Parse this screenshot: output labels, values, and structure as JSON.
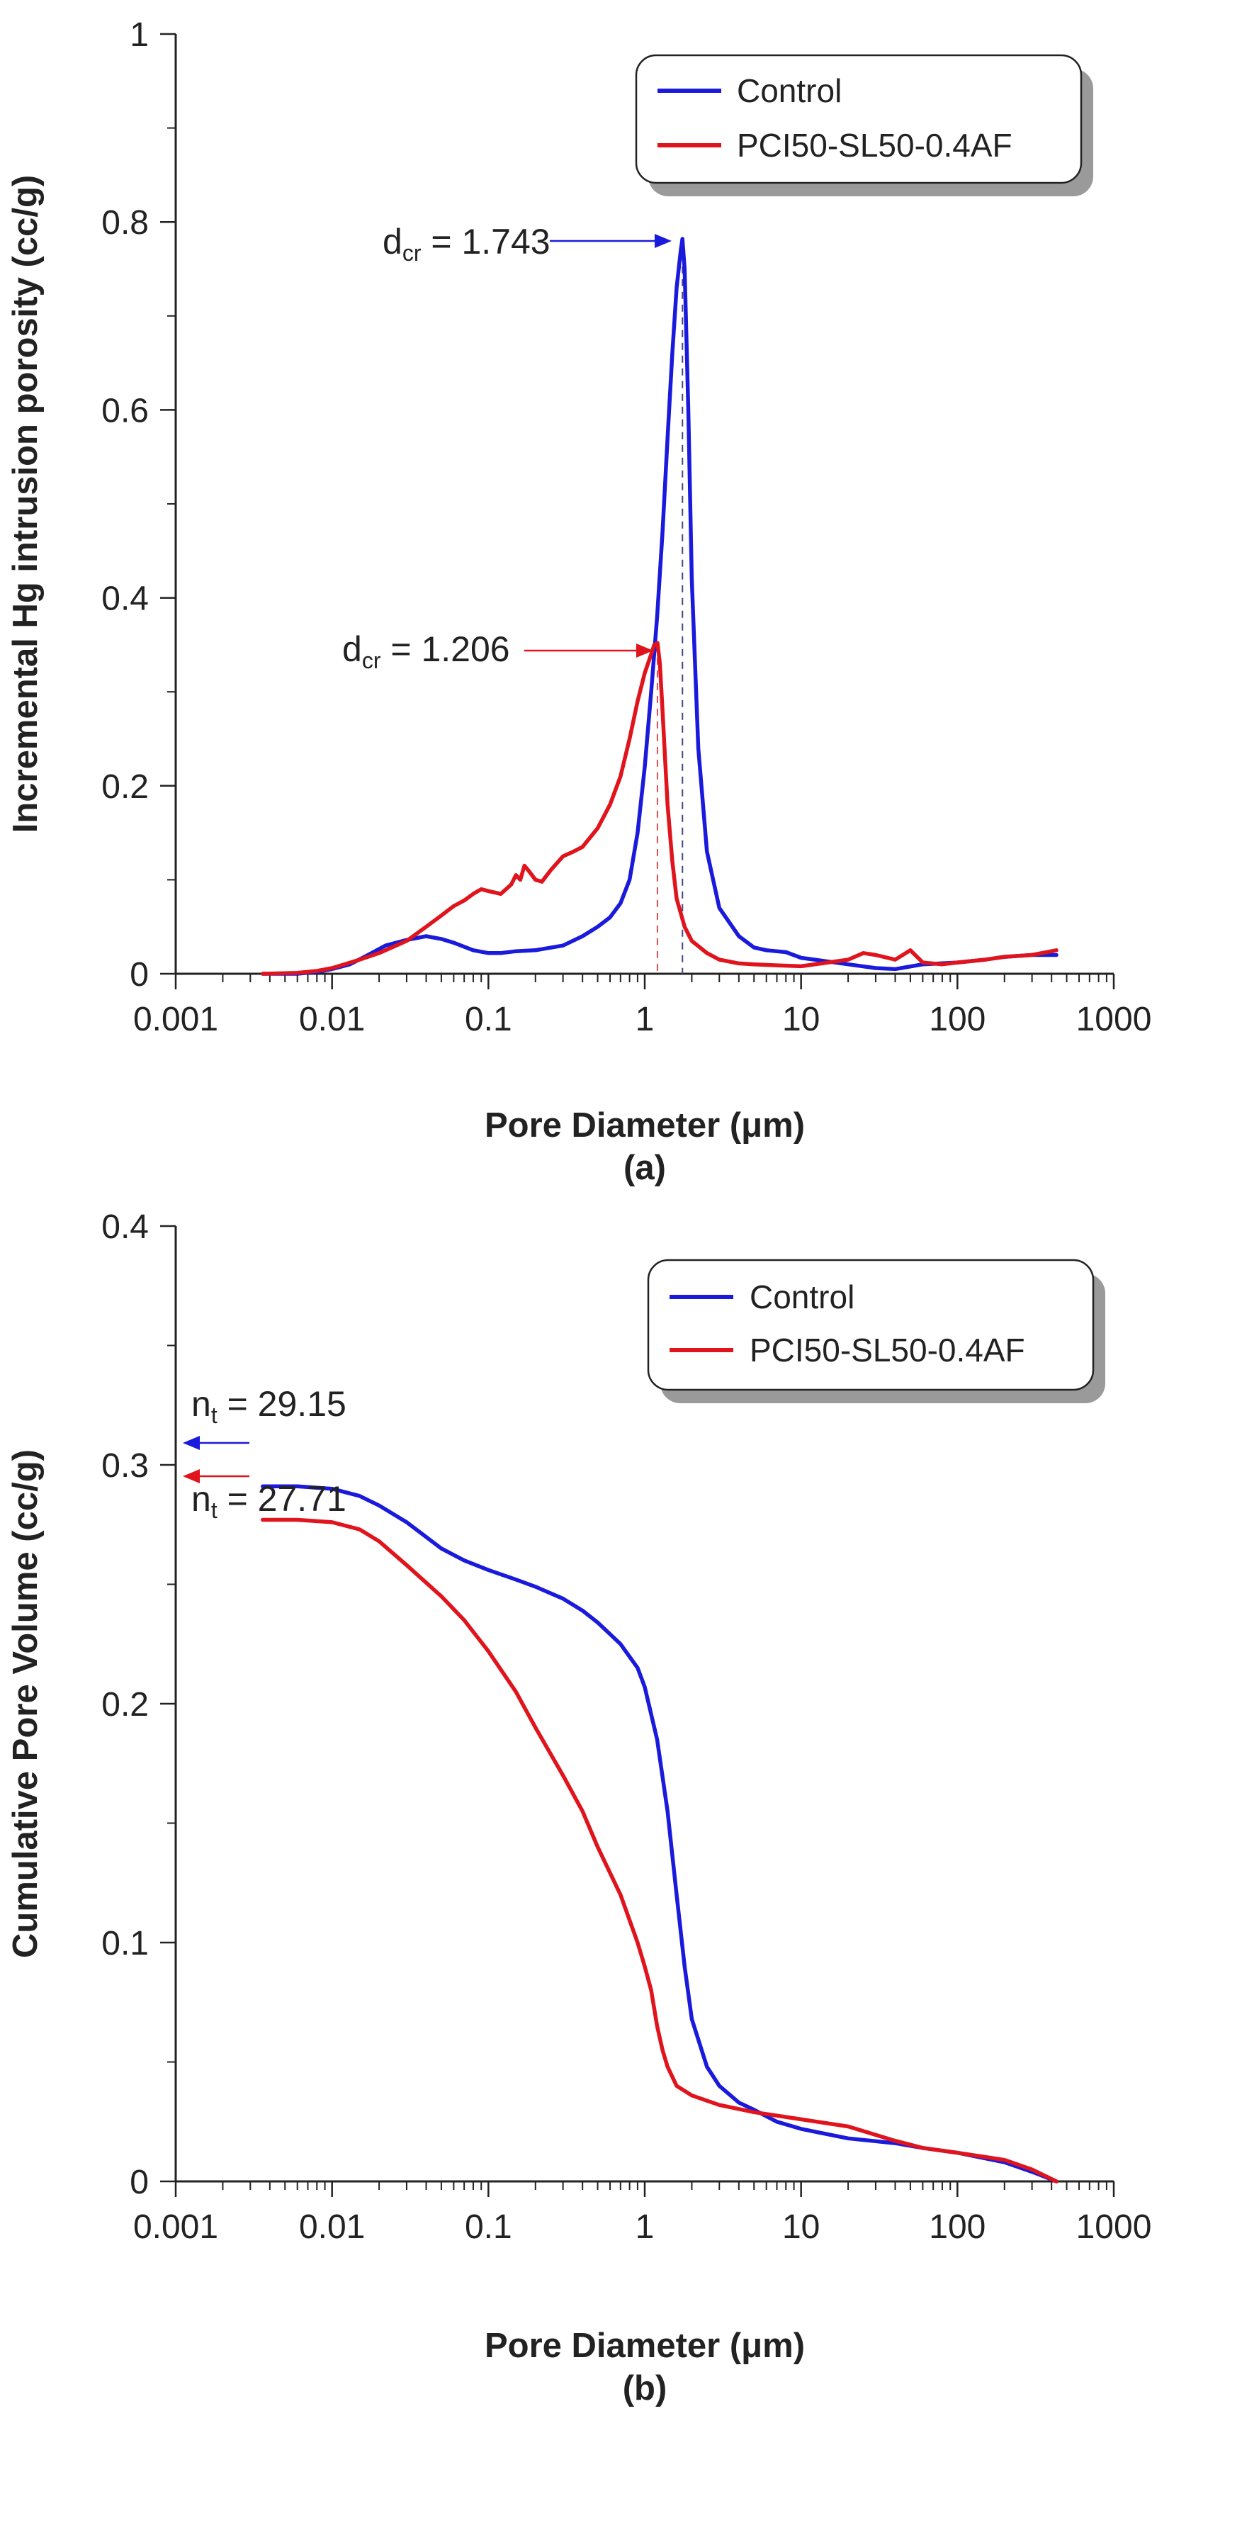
{
  "colors": {
    "control": "#1a1adc",
    "pci": "#e0141c",
    "axis": "#222222",
    "refline_blue": "#444488",
    "refline_red": "#e05050"
  },
  "chart_data": [
    {
      "type": "line",
      "panel": "(a)",
      "xscale": "log",
      "xlim": [
        0.001,
        1000
      ],
      "ylim": [
        0,
        1
      ],
      "xlabel": "Pore Diameter (μm)",
      "ylabel": "Incremental Hg intrusion porosity (cc/g)",
      "xticks": [
        "0.001",
        "0.01",
        "0.1",
        "1",
        "10",
        "100",
        "1000"
      ],
      "yticks": [
        "0",
        "0.2",
        "0.4",
        "0.6",
        "0.8",
        "1"
      ],
      "legend": {
        "placement": "top-right",
        "entries": [
          "Control",
          "PCI50-SL50-0.4AF"
        ]
      },
      "annotations": [
        {
          "main": "d",
          "sub": "cr",
          "rest": " = 1.743",
          "series": "Control",
          "x": 1.743,
          "y": 0.78
        },
        {
          "main": "d",
          "sub": "cr",
          "rest": " = 1.206",
          "series": "PCI50-SL50-0.4AF",
          "x": 1.206,
          "y": 0.35
        }
      ],
      "series": [
        {
          "name": "Control",
          "color_key": "control",
          "x": [
            0.0036,
            0.006,
            0.008,
            0.01,
            0.013,
            0.017,
            0.022,
            0.03,
            0.04,
            0.05,
            0.06,
            0.08,
            0.1,
            0.12,
            0.15,
            0.2,
            0.3,
            0.4,
            0.5,
            0.6,
            0.7,
            0.8,
            0.9,
            1.0,
            1.1,
            1.2,
            1.3,
            1.4,
            1.5,
            1.6,
            1.7,
            1.743,
            1.8,
            1.9,
            2.0,
            2.2,
            2.5,
            3,
            4,
            5,
            6,
            8,
            10,
            15,
            20,
            30,
            40,
            60,
            100,
            150,
            200,
            300,
            430
          ],
          "y": [
            0.0,
            0.0,
            0.002,
            0.005,
            0.01,
            0.02,
            0.03,
            0.036,
            0.04,
            0.037,
            0.033,
            0.025,
            0.022,
            0.022,
            0.024,
            0.025,
            0.03,
            0.04,
            0.05,
            0.06,
            0.075,
            0.1,
            0.15,
            0.22,
            0.3,
            0.38,
            0.47,
            0.57,
            0.66,
            0.73,
            0.77,
            0.782,
            0.75,
            0.6,
            0.42,
            0.24,
            0.13,
            0.07,
            0.04,
            0.028,
            0.025,
            0.023,
            0.017,
            0.013,
            0.01,
            0.006,
            0.005,
            0.01,
            0.012,
            0.015,
            0.018,
            0.02,
            0.02
          ]
        },
        {
          "name": "PCI50-SL50-0.4AF",
          "color_key": "pci",
          "x": [
            0.0036,
            0.006,
            0.008,
            0.01,
            0.012,
            0.015,
            0.02,
            0.03,
            0.04,
            0.05,
            0.06,
            0.07,
            0.08,
            0.09,
            0.1,
            0.12,
            0.14,
            0.15,
            0.16,
            0.17,
            0.18,
            0.2,
            0.22,
            0.25,
            0.3,
            0.35,
            0.4,
            0.5,
            0.6,
            0.7,
            0.8,
            0.9,
            1.0,
            1.1,
            1.15,
            1.206,
            1.25,
            1.3,
            1.4,
            1.5,
            1.6,
            1.8,
            2.0,
            2.5,
            3,
            4,
            5,
            7,
            10,
            20,
            25,
            30,
            40,
            50,
            60,
            80,
            100,
            150,
            200,
            300,
            430
          ],
          "y": [
            0.0,
            0.001,
            0.003,
            0.006,
            0.01,
            0.015,
            0.022,
            0.035,
            0.05,
            0.062,
            0.072,
            0.078,
            0.085,
            0.09,
            0.088,
            0.085,
            0.095,
            0.105,
            0.1,
            0.115,
            0.11,
            0.1,
            0.098,
            0.11,
            0.125,
            0.13,
            0.135,
            0.155,
            0.18,
            0.21,
            0.25,
            0.29,
            0.32,
            0.34,
            0.35,
            0.352,
            0.33,
            0.28,
            0.18,
            0.12,
            0.08,
            0.05,
            0.035,
            0.022,
            0.015,
            0.011,
            0.01,
            0.009,
            0.008,
            0.015,
            0.022,
            0.02,
            0.015,
            0.025,
            0.012,
            0.01,
            0.012,
            0.015,
            0.018,
            0.02,
            0.025
          ]
        }
      ]
    },
    {
      "type": "line",
      "panel": "(b)",
      "xscale": "log",
      "xlim": [
        0.001,
        1000
      ],
      "ylim": [
        0,
        0.4
      ],
      "xlabel": "Pore Diameter (μm)",
      "ylabel": "Cumulative Pore Volume (cc/g)",
      "xticks": [
        "0.001",
        "0.01",
        "0.1",
        "1",
        "10",
        "100",
        "1000"
      ],
      "yticks": [
        "0",
        "0.1",
        "0.2",
        "0.3",
        "0.4"
      ],
      "legend": {
        "placement": "top-right",
        "entries": [
          "Control",
          "PCI50-SL50-0.4AF"
        ]
      },
      "annotations": [
        {
          "main": "n",
          "sub": "t",
          "rest": " = 29.15",
          "series": "Control",
          "y": 0.291
        },
        {
          "main": "n",
          "sub": "t",
          "rest": " = 27.71",
          "series": "PCI50-SL50-0.4AF",
          "y": 0.277
        }
      ],
      "series": [
        {
          "name": "Control",
          "color_key": "control",
          "x": [
            0.0036,
            0.006,
            0.01,
            0.015,
            0.02,
            0.03,
            0.05,
            0.07,
            0.1,
            0.15,
            0.2,
            0.3,
            0.4,
            0.5,
            0.7,
            0.9,
            1.0,
            1.2,
            1.4,
            1.6,
            1.8,
            2.0,
            2.5,
            3,
            4,
            5,
            7,
            10,
            20,
            40,
            60,
            100,
            200,
            300,
            430
          ],
          "y": [
            0.291,
            0.291,
            0.29,
            0.287,
            0.283,
            0.276,
            0.265,
            0.26,
            0.256,
            0.252,
            0.249,
            0.244,
            0.239,
            0.234,
            0.225,
            0.215,
            0.207,
            0.185,
            0.155,
            0.12,
            0.09,
            0.068,
            0.048,
            0.04,
            0.033,
            0.03,
            0.025,
            0.022,
            0.018,
            0.016,
            0.014,
            0.012,
            0.008,
            0.004,
            0.0
          ]
        },
        {
          "name": "PCI50-SL50-0.4AF",
          "color_key": "pci",
          "x": [
            0.0036,
            0.006,
            0.01,
            0.015,
            0.02,
            0.03,
            0.05,
            0.07,
            0.1,
            0.15,
            0.2,
            0.3,
            0.4,
            0.5,
            0.7,
            0.9,
            1.0,
            1.1,
            1.2,
            1.3,
            1.4,
            1.6,
            2.0,
            3,
            5,
            10,
            20,
            40,
            60,
            100,
            200,
            300,
            430
          ],
          "y": [
            0.277,
            0.277,
            0.276,
            0.273,
            0.268,
            0.258,
            0.245,
            0.235,
            0.222,
            0.205,
            0.19,
            0.17,
            0.155,
            0.14,
            0.12,
            0.1,
            0.09,
            0.08,
            0.065,
            0.055,
            0.048,
            0.04,
            0.036,
            0.032,
            0.029,
            0.026,
            0.023,
            0.017,
            0.014,
            0.012,
            0.009,
            0.005,
            0.0
          ]
        }
      ]
    }
  ]
}
